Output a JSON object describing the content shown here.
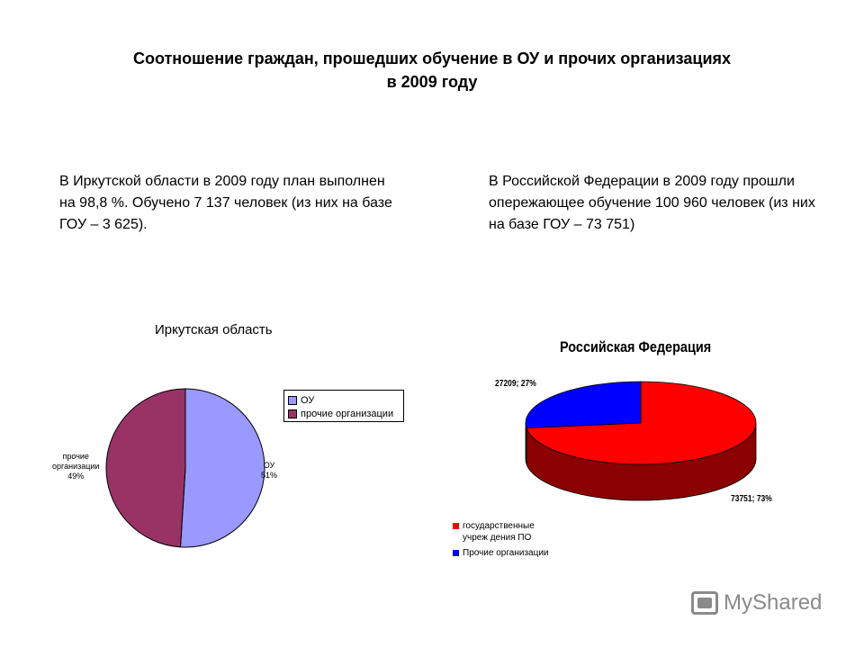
{
  "page": {
    "title_line1": "Соотношение граждан, прошедших обучение в ОУ и прочих организациях",
    "title_line2": "в 2009 году",
    "left_text": "В Иркутской области в 2009 году план выполнен на 98,8 %. Обучено 7 137 человек (из них на базе ГОУ – 3 625).",
    "right_text": "В Российской Федерации в 2009 году прошли опережающее обучение 100 960 человек (из них на базе ГОУ – 73 751)"
  },
  "chart_data": [
    {
      "type": "pie",
      "title": "Иркутская область",
      "slices": [
        {
          "label": "ОУ",
          "value": 51,
          "color": "#9999ff",
          "data_label_line1": "ОУ",
          "data_label_line2": "51%"
        },
        {
          "label": "прочие организации",
          "value": 49,
          "color": "#993366",
          "data_label_line1": "прочие",
          "data_label_line2": "организации",
          "data_label_line3": "49%"
        }
      ],
      "legend": [
        "ОУ",
        "прочие организации"
      ],
      "legend_position": "right"
    },
    {
      "type": "pie",
      "style": "3d",
      "title": "Российская Федерация",
      "slices": [
        {
          "label": "государственные учреждения ПО",
          "value": 73751,
          "percent": 73,
          "color": "#ff0000",
          "data_label": "73751; 73%"
        },
        {
          "label": "Прочие организации",
          "value": 27209,
          "percent": 27,
          "color": "#0000ff",
          "data_label": "27209; 27%"
        }
      ],
      "legend": [
        "государственные учреж дения ПО",
        "Прочие организации"
      ],
      "legend_position": "bottom-left"
    }
  ],
  "watermark": {
    "text": "MyShared",
    "icon": "presentation-icon"
  }
}
